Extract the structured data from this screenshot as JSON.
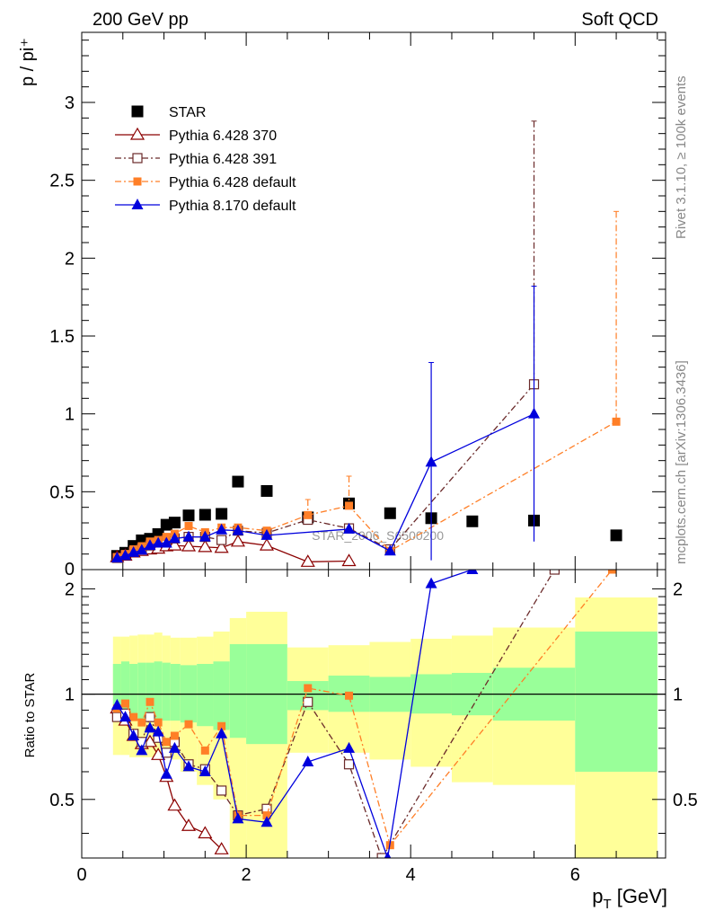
{
  "header": {
    "left_label": "200 GeV pp",
    "right_label": "Soft QCD"
  },
  "side_labels": {
    "rivet": "Rivet 3.1.10, ≥ 100k events",
    "mcplots": "mcplots.cern.ch [arXiv:1306.3436]"
  },
  "watermark": "STAR_2006_S6500200",
  "chart_data": [
    {
      "type": "scatter",
      "panel": "main",
      "ylabel": "p / pi⁺",
      "xlim": [
        0,
        7.1
      ],
      "ylim": [
        0,
        3.45
      ],
      "x_ticks": [
        0,
        2,
        4,
        6
      ],
      "y_ticks": [
        0.5,
        1,
        1.5,
        2,
        2.5,
        3
      ],
      "y_tick_labels": [
        "0.5",
        "1",
        "1.5",
        "2",
        "2.5",
        "3"
      ],
      "y_bottom_label": "0",
      "legend_position": "top-left",
      "series": [
        {
          "name": "STAR",
          "color": "#000000",
          "marker": "square-filled",
          "line": "none",
          "x": [
            0.43,
            0.53,
            0.63,
            0.73,
            0.83,
            0.93,
            1.03,
            1.13,
            1.3,
            1.5,
            1.7,
            1.9,
            2.25,
            2.75,
            3.25,
            3.75,
            4.25,
            4.75,
            5.5,
            6.5
          ],
          "y": [
            0.088,
            0.108,
            0.152,
            0.188,
            0.198,
            0.228,
            0.288,
            0.302,
            0.348,
            0.352,
            0.358,
            0.565,
            0.505,
            0.335,
            0.425,
            0.362,
            0.33,
            0.31,
            0.315,
            0.22
          ]
        },
        {
          "name": "Pythia 6.428 370",
          "color": "#8b0000",
          "marker": "triangle-open",
          "line": "solid",
          "x": [
            0.43,
            0.53,
            0.63,
            0.73,
            0.83,
            0.93,
            1.03,
            1.13,
            1.3,
            1.5,
            1.7,
            1.9,
            2.25,
            2.75,
            3.25
          ],
          "y": [
            0.08,
            0.09,
            0.11,
            0.12,
            0.13,
            0.135,
            0.15,
            0.155,
            0.15,
            0.145,
            0.14,
            0.18,
            0.155,
            0.05,
            0.055
          ]
        },
        {
          "name": "Pythia 6.428 391",
          "color": "#6b2a2a",
          "marker": "square-open",
          "line": "dashdot",
          "x": [
            0.43,
            0.53,
            0.63,
            0.73,
            0.83,
            0.93,
            1.03,
            1.13,
            1.3,
            1.5,
            1.7,
            1.9,
            2.25,
            2.75,
            3.25,
            3.75,
            5.5
          ],
          "y": [
            0.075,
            0.093,
            0.115,
            0.135,
            0.155,
            0.175,
            0.19,
            0.2,
            0.21,
            0.21,
            0.19,
            0.25,
            0.235,
            0.32,
            0.265,
            0.13,
            1.19
          ],
          "y_err_high": [
            null,
            null,
            null,
            null,
            null,
            null,
            null,
            null,
            null,
            null,
            null,
            null,
            null,
            null,
            null,
            null,
            2.88
          ]
        },
        {
          "name": "Pythia 6.428 default",
          "color": "#ff7f27",
          "marker": "square-filled-small",
          "line": "dashdot",
          "x": [
            0.43,
            0.53,
            0.63,
            0.73,
            0.83,
            0.93,
            1.03,
            1.13,
            1.3,
            1.5,
            1.7,
            1.9,
            2.25,
            2.75,
            3.25,
            3.75,
            6.5
          ],
          "y": [
            0.08,
            0.1,
            0.13,
            0.15,
            0.18,
            0.19,
            0.21,
            0.23,
            0.28,
            0.24,
            0.27,
            0.27,
            0.25,
            0.35,
            0.41,
            0.12,
            0.95
          ],
          "y_err_high": [
            null,
            null,
            null,
            null,
            null,
            null,
            null,
            null,
            null,
            null,
            null,
            null,
            null,
            0.45,
            0.6,
            null,
            2.3
          ]
        },
        {
          "name": "Pythia 8.170 default",
          "color": "#0000dd",
          "marker": "triangle-filled",
          "line": "solid",
          "x": [
            0.43,
            0.53,
            0.63,
            0.73,
            0.83,
            0.93,
            1.03,
            1.13,
            1.3,
            1.5,
            1.7,
            1.9,
            2.25,
            2.75,
            3.25,
            3.75,
            4.25,
            5.5
          ],
          "y": [
            0.075,
            0.09,
            0.11,
            0.125,
            0.155,
            0.17,
            0.17,
            0.2,
            0.21,
            0.21,
            0.255,
            0.25,
            0.22,
            null,
            0.26,
            0.12,
            0.69,
            1.0
          ],
          "y_err_low": [
            null,
            null,
            null,
            null,
            null,
            null,
            null,
            null,
            null,
            null,
            null,
            null,
            null,
            null,
            null,
            null,
            0.06,
            0.18
          ],
          "y_err_high": [
            null,
            null,
            null,
            null,
            null,
            null,
            null,
            null,
            null,
            null,
            null,
            null,
            null,
            null,
            null,
            null,
            1.33,
            1.82
          ]
        }
      ]
    },
    {
      "type": "scatter",
      "panel": "ratio",
      "ylabel": "Ratio to STAR",
      "xlabel": "p",
      "xlabel_sub": "T",
      "xlabel_unit": " [GeV]",
      "xlim": [
        0,
        7.1
      ],
      "ylim": [
        0.34,
        2.27
      ],
      "x_ticks": [
        0,
        2,
        4,
        6
      ],
      "x_tick_labels": [
        "0",
        "2",
        "4",
        "6"
      ],
      "y_ticks": [
        0.5,
        1,
        2
      ],
      "y_tick_labels": [
        "0.5",
        "1",
        "2"
      ],
      "reference_line": 1,
      "bands": {
        "bins": [
          [
            0.38,
            0.48
          ],
          [
            0.48,
            0.58
          ],
          [
            0.58,
            0.68
          ],
          [
            0.68,
            0.78
          ],
          [
            0.78,
            0.88
          ],
          [
            0.88,
            0.98
          ],
          [
            0.98,
            1.08
          ],
          [
            1.08,
            1.2
          ],
          [
            1.2,
            1.4
          ],
          [
            1.4,
            1.6
          ],
          [
            1.6,
            1.8
          ],
          [
            1.8,
            2.0
          ],
          [
            2.0,
            2.5
          ],
          [
            2.5,
            3.0
          ],
          [
            3.0,
            3.5
          ],
          [
            3.5,
            4.0
          ],
          [
            4.0,
            4.5
          ],
          [
            4.5,
            5.0
          ],
          [
            5.0,
            6.0
          ],
          [
            6.0,
            7.0
          ]
        ],
        "inner_color": "#99ff99",
        "outer_color": "#ffff99",
        "inner_low": [
          0.84,
          0.83,
          0.84,
          0.84,
          0.85,
          0.85,
          0.84,
          0.84,
          0.83,
          0.81,
          0.79,
          0.75,
          0.72,
          0.9,
          0.89,
          0.89,
          0.88,
          0.87,
          0.84,
          0.6
        ],
        "inner_high": [
          1.22,
          1.24,
          1.22,
          1.23,
          1.23,
          1.24,
          1.23,
          1.22,
          1.21,
          1.22,
          1.24,
          1.39,
          1.39,
          1.09,
          1.13,
          1.12,
          1.14,
          1.15,
          1.19,
          1.51
        ],
        "outer_low": [
          0.67,
          0.67,
          0.66,
          0.66,
          0.66,
          0.67,
          0.66,
          0.65,
          0.6,
          0.55,
          0.5,
          0.34,
          0.34,
          0.68,
          0.68,
          0.65,
          0.62,
          0.56,
          0.55,
          0.34
        ],
        "outer_high": [
          1.46,
          1.46,
          1.47,
          1.48,
          1.48,
          1.5,
          1.47,
          1.45,
          1.45,
          1.46,
          1.51,
          1.65,
          1.72,
          1.36,
          1.38,
          1.41,
          1.44,
          1.47,
          1.55,
          1.89
        ]
      },
      "series": [
        {
          "name": "Pythia 6.428 370",
          "color": "#8b0000",
          "marker": "triangle-open",
          "line": "solid",
          "x": [
            0.43,
            0.53,
            0.63,
            0.73,
            0.83,
            0.93,
            1.03,
            1.13,
            1.3,
            1.5,
            1.7
          ],
          "y": [
            0.91,
            0.84,
            0.76,
            0.72,
            0.73,
            0.67,
            0.58,
            0.48,
            0.42,
            0.4,
            0.36
          ]
        },
        {
          "name": "Pythia 6.428 391",
          "color": "#6b2a2a",
          "marker": "square-open",
          "line": "dashdot",
          "x": [
            0.43,
            0.53,
            0.63,
            0.73,
            0.83,
            0.93,
            1.03,
            1.13,
            1.3,
            1.5,
            1.7,
            1.9,
            2.25,
            2.75,
            3.25,
            3.65,
            5.75
          ],
          "y": [
            0.86,
            0.88,
            0.77,
            0.73,
            0.86,
            0.75,
            0.68,
            0.73,
            0.63,
            0.61,
            0.53,
            0.45,
            0.47,
            0.95,
            0.63,
            0.34,
            2.27
          ]
        },
        {
          "name": "Pythia 6.428 default",
          "color": "#ff7f27",
          "marker": "square-filled-small",
          "line": "dashdot",
          "x": [
            0.43,
            0.53,
            0.63,
            0.73,
            0.83,
            0.93,
            1.03,
            1.13,
            1.3,
            1.5,
            1.7,
            1.9,
            2.25,
            2.75,
            3.25,
            3.75,
            6.45
          ],
          "y": [
            0.91,
            0.94,
            0.86,
            0.83,
            0.95,
            0.83,
            0.73,
            0.76,
            0.82,
            0.69,
            0.81,
            0.45,
            0.45,
            1.04,
            0.99,
            0.37,
            2.27
          ]
        },
        {
          "name": "Pythia 8.170 default",
          "color": "#0000dd",
          "marker": "triangle-filled",
          "line": "solid",
          "x": [
            0.43,
            0.53,
            0.63,
            0.73,
            0.83,
            0.93,
            1.03,
            1.13,
            1.3,
            1.5,
            1.7,
            1.9,
            2.25,
            2.75,
            3.25,
            3.72,
            4.25,
            4.75
          ],
          "y": [
            0.93,
            0.86,
            0.76,
            0.69,
            0.8,
            0.78,
            0.59,
            0.7,
            0.62,
            0.6,
            0.77,
            0.44,
            0.43,
            0.64,
            0.7,
            0.34,
            2.07,
            2.27
          ]
        }
      ]
    }
  ]
}
